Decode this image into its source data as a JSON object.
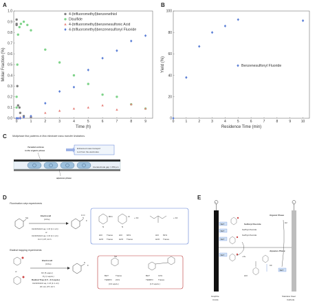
{
  "panels": {
    "a": "A",
    "b": "B",
    "c": "C",
    "d": "D",
    "e": "E"
  },
  "chart_data": [
    {
      "type": "scatter",
      "xlabel": "Time (h)",
      "ylabel": "Molar Fraction (%)",
      "xlim": [
        -0.2,
        9.5
      ],
      "ylim": [
        0,
        1.0
      ],
      "xticks": [
        "0",
        "1",
        "2",
        "3",
        "4",
        "5",
        "6",
        "7",
        "8",
        "9"
      ],
      "yticks": [
        "0.0",
        "0.1",
        "0.2",
        "0.3",
        "0.4",
        "0.5",
        "0.6",
        "0.7",
        "0.8",
        "0.9",
        "1.0"
      ],
      "legend_position": "top-right",
      "series": [
        {
          "name": "4-(trifluoromethyl)benzenethiol",
          "color": "#7f7f7f",
          "marker": "circle",
          "points": [
            [
              0,
              0.92
            ],
            [
              0,
              0.88
            ],
            [
              0,
              0.87
            ],
            [
              0.05,
              0.3
            ],
            [
              0.1,
              0.12
            ],
            [
              0.2,
              0.1
            ],
            [
              0.25,
              0.05
            ],
            [
              0.5,
              0.02
            ],
            [
              1,
              0.01
            ]
          ]
        },
        {
          "name": "Disulfide",
          "color": "#7fd38a",
          "marker": "circle",
          "points": [
            [
              0,
              0.1
            ],
            [
              0,
              0.2
            ],
            [
              0.05,
              0.5
            ],
            [
              0.1,
              0.78
            ],
            [
              0.2,
              0.85
            ],
            [
              0.3,
              0.88
            ],
            [
              0.5,
              0.9
            ],
            [
              0.75,
              0.87
            ],
            [
              1,
              0.82
            ],
            [
              2,
              0.64
            ],
            [
              3,
              0.52
            ],
            [
              4,
              0.4
            ],
            [
              5,
              0.32
            ],
            [
              6,
              0.22
            ],
            [
              7,
              0.2
            ],
            [
              8,
              0.13
            ],
            [
              9,
              0.09
            ]
          ]
        },
        {
          "name": "4-(trifluoromethyl)benzenesulfonic Acid",
          "color": "#e6807a",
          "marker": "triangle",
          "points": [
            [
              0,
              0.0
            ],
            [
              0.1,
              0.0
            ],
            [
              0.25,
              0.01
            ],
            [
              0.5,
              0.01
            ],
            [
              1,
              0.02
            ],
            [
              2,
              0.05
            ],
            [
              3,
              0.07
            ],
            [
              4,
              0.09
            ],
            [
              5,
              0.1
            ],
            [
              6,
              0.12
            ],
            [
              7,
              0.08
            ],
            [
              8,
              0.13
            ],
            [
              9,
              0.09
            ]
          ]
        },
        {
          "name": "4-(trifluoromethyl)benzenesulfonyl Fluoride",
          "color": "#5b7fd6",
          "marker": "diamond",
          "points": [
            [
              0,
              0.0
            ],
            [
              0.1,
              0.0
            ],
            [
              0.25,
              0.0
            ],
            [
              0.5,
              0.01
            ],
            [
              1,
              0.02
            ],
            [
              2,
              0.14
            ],
            [
              3,
              0.25
            ],
            [
              4,
              0.29
            ],
            [
              5,
              0.45
            ],
            [
              6,
              0.56
            ],
            [
              7,
              0.63
            ],
            [
              8,
              0.72
            ],
            [
              9,
              0.77
            ]
          ]
        }
      ]
    },
    {
      "type": "scatter",
      "xlabel": "Residence Time (min)",
      "ylabel": "Yield (%)",
      "xlim": [
        0,
        10.5
      ],
      "ylim": [
        0,
        100
      ],
      "xticks": [
        "0",
        "1",
        "2",
        "3",
        "4",
        "5",
        "6",
        "7",
        "8",
        "9",
        "10"
      ],
      "yticks": [
        "0",
        "20",
        "40",
        "60",
        "80",
        "100"
      ],
      "legend_position": "center-right",
      "series": [
        {
          "name": "Benzenesulfonyl Fluoride",
          "color": "#5b7fd6",
          "marker": "diamond",
          "points": [
            [
              0,
              0
            ],
            [
              1,
              38
            ],
            [
              2,
              67
            ],
            [
              3,
              80
            ],
            [
              4,
              86
            ],
            [
              5,
              92
            ],
            [
              10,
              91
            ]
          ]
        }
      ]
    }
  ],
  "c": {
    "title": "Multiphase flow patterns in flow eliminate mass transfer limitations.",
    "taylor": "Toroidal vortices",
    "taylor2": "in the organic phase",
    "box": "Enhanced mass transport",
    "box2": "to & from the electrodes",
    "gap": "interelectrode gap = 250 μm",
    "aq": "aqueous phase"
  },
  "d": {
    "t1": "Fluorination step experiments",
    "electro1": "Electrocell",
    "electro1b": "(C/Fe)",
    "cond1a": "CH3CN/HCl aq. 1 M (1:1 v/v)",
    "cond1b": "or",
    "cond1c": "CH3CN/HCl aq. 1 M (1:1 v/v)",
    "cond1d": "0.2 V, RT, 24 h",
    "r1a": "HCl",
    "r1b": "H2O",
    "r1c": "Traces",
    "r1d": "Traces",
    "r2a": "HCl",
    "r2b": "H2O",
    "r2c": "94%",
    "r2d": "Traces",
    "r3a": "HCl",
    "r3b": "H2O",
    "r3c": "81%",
    "r3d": "Traces",
    "kf1": "+ KF",
    "kf2": "+ KF",
    "t2": "Radical trapping experiments",
    "electro2": "Electrocell",
    "electro2b": "(C/Fe)",
    "cond2a": "KF (5 equiv.)",
    "cond2b": "Py (1 equiv.)",
    "cond2c": "Radical Trap (1.5 - 3.0 equiv.)",
    "cond2d": "CH3CN/HCl aq. 1 M (1:1 v/v)",
    "cond2e": "20 mA, RT, 24 h",
    "or2": "or",
    "bht1": "BHT",
    "tempo1": "TEMPO",
    "v1a": "Traces",
    "v1b": "21%",
    "eq1": "(3.0 equiv.)",
    "bht2": "BHT",
    "tempo2": "TEMPO",
    "v2a": "13%",
    "v2b": "Traces",
    "eq2": "(1.5 equiv.)"
  },
  "e": {
    "organic": "Organic Phase",
    "aqueous": "Aqueous Phase",
    "sf": "Sulfonyl Fluoride",
    "sfl": "Sulfinyl Fluoride",
    "sflb": "Sulfinyl Fluoride",
    "set1": "SET",
    "set2": "SET",
    "set3": "SET",
    "set4": "SET",
    "set5": "SET",
    "kf": "KF",
    "hcl": "HCl",
    "anode": "Graphite",
    "anode2": "Anode",
    "cathode": "Stainless Steel",
    "cathode2": "Cathode",
    "plus": "+",
    "minus": "−",
    "h2": "H2",
    "hplus": "+H+"
  }
}
